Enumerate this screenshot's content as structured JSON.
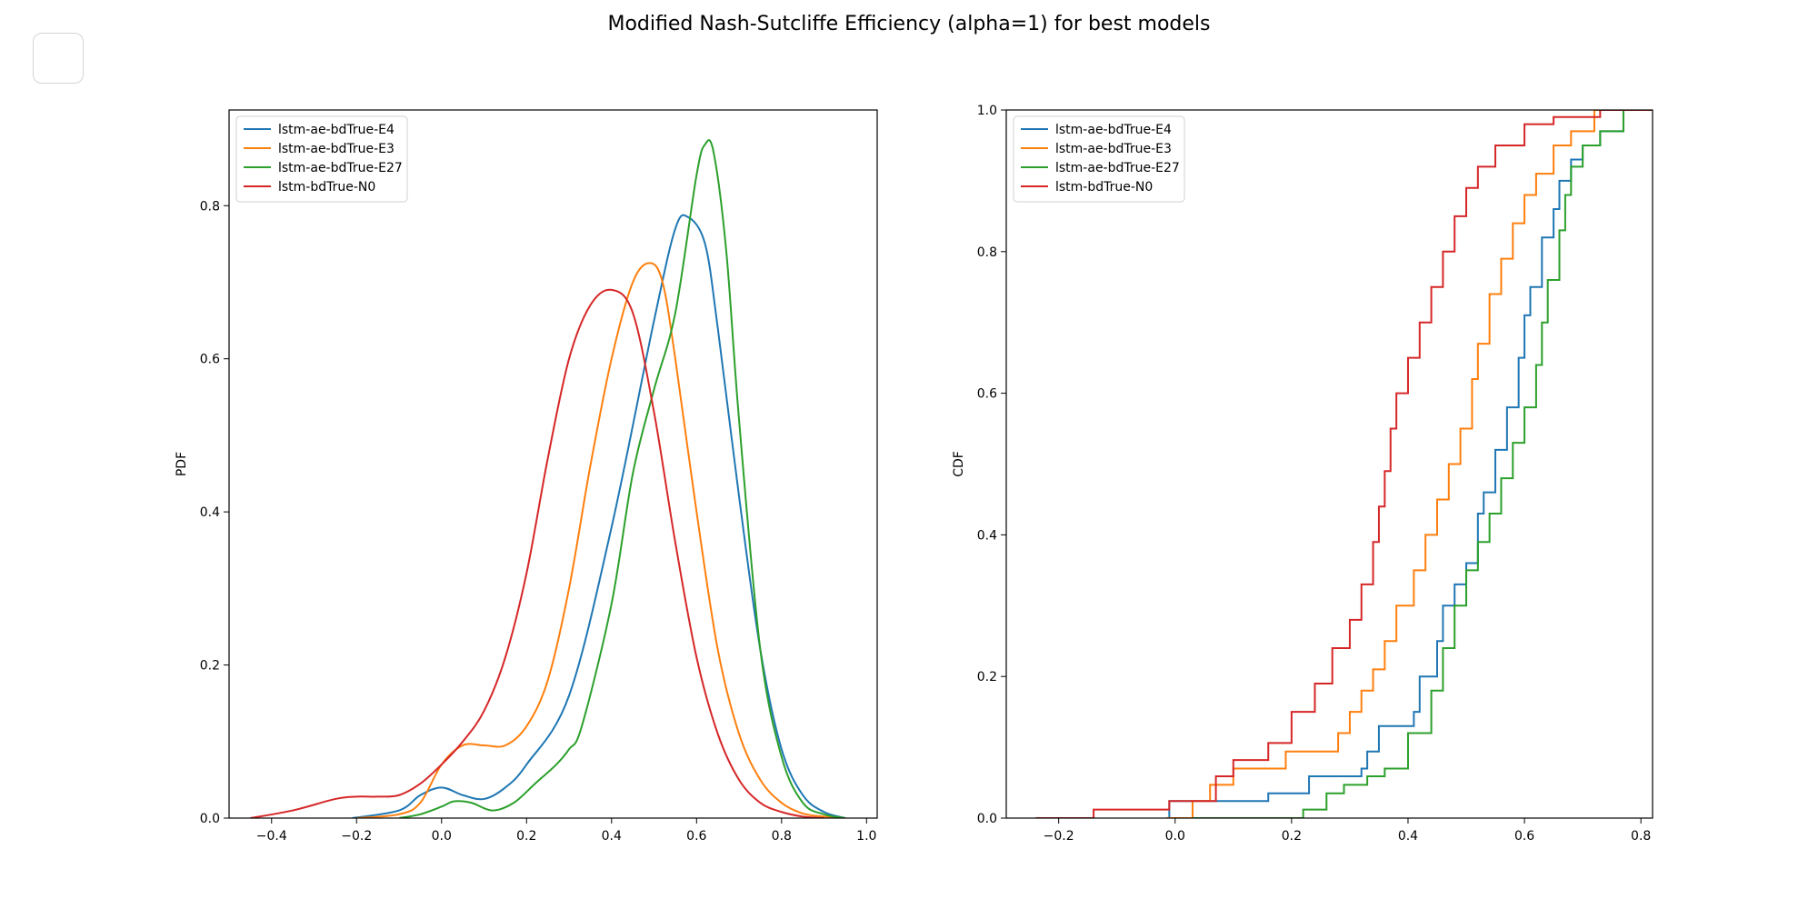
{
  "title": "Modified Nash-Sutcliffe Efficiency (alpha=1) for best models",
  "colors": {
    "E4": "#1f77b4",
    "E3": "#ff7f0e",
    "E27": "#2ca02c",
    "N0": "#d62728"
  },
  "chart_data": [
    {
      "type": "line",
      "ylabel": "PDF",
      "xlabel": "",
      "xlim": [
        -0.5,
        1.025
      ],
      "ylim": [
        0,
        0.925
      ],
      "xticks": [
        -0.4,
        -0.2,
        0.0,
        0.2,
        0.4,
        0.6,
        0.8,
        1.0
      ],
      "xtick_labels": [
        "−0.4",
        "−0.2",
        "0.0",
        "0.2",
        "0.4",
        "0.6",
        "0.8",
        "1.0"
      ],
      "yticks": [
        0.0,
        0.2,
        0.4,
        0.6,
        0.8
      ],
      "ytick_labels": [
        "0.0",
        "0.2",
        "0.4",
        "0.6",
        "0.8"
      ],
      "legend": "top-left",
      "grid": false,
      "series": [
        {
          "name": "lstm-ae-bdTrue-E4",
          "color": "#1f77b4",
          "x": [
            -0.21,
            -0.1,
            -0.05,
            0.0,
            0.05,
            0.1,
            0.15,
            0.2,
            0.3,
            0.4,
            0.5,
            0.55,
            0.58,
            0.62,
            0.65,
            0.7,
            0.75,
            0.8,
            0.85,
            0.9,
            0.95
          ],
          "y": [
            0.0,
            0.01,
            0.03,
            0.04,
            0.03,
            0.025,
            0.04,
            0.07,
            0.16,
            0.38,
            0.65,
            0.77,
            0.785,
            0.75,
            0.64,
            0.42,
            0.22,
            0.09,
            0.03,
            0.008,
            0.0
          ]
        },
        {
          "name": "lstm-ae-bdTrue-E3",
          "color": "#ff7f0e",
          "x": [
            -0.2,
            -0.1,
            -0.05,
            0.0,
            0.05,
            0.1,
            0.15,
            0.2,
            0.25,
            0.3,
            0.35,
            0.4,
            0.45,
            0.49,
            0.52,
            0.55,
            0.6,
            0.65,
            0.7,
            0.75,
            0.8,
            0.85,
            0.9,
            0.95
          ],
          "y": [
            0.0,
            0.005,
            0.02,
            0.07,
            0.095,
            0.095,
            0.095,
            0.12,
            0.18,
            0.3,
            0.46,
            0.6,
            0.7,
            0.725,
            0.7,
            0.6,
            0.4,
            0.22,
            0.11,
            0.05,
            0.02,
            0.006,
            0.002,
            0.0
          ]
        },
        {
          "name": "lstm-ae-bdTrue-E27",
          "color": "#2ca02c",
          "x": [
            -0.1,
            -0.05,
            0.0,
            0.03,
            0.07,
            0.12,
            0.17,
            0.22,
            0.27,
            0.3,
            0.33,
            0.4,
            0.45,
            0.5,
            0.55,
            0.6,
            0.62,
            0.64,
            0.67,
            0.7,
            0.75,
            0.8,
            0.85,
            0.9,
            0.95
          ],
          "y": [
            0.0,
            0.005,
            0.015,
            0.022,
            0.02,
            0.01,
            0.02,
            0.045,
            0.07,
            0.09,
            0.12,
            0.28,
            0.45,
            0.56,
            0.66,
            0.84,
            0.88,
            0.87,
            0.74,
            0.52,
            0.22,
            0.08,
            0.02,
            0.005,
            0.0
          ]
        },
        {
          "name": "lstm-bdTrue-N0",
          "color": "#d62728",
          "x": [
            -0.45,
            -0.35,
            -0.25,
            -0.2,
            -0.15,
            -0.1,
            -0.05,
            0.0,
            0.05,
            0.1,
            0.15,
            0.2,
            0.25,
            0.3,
            0.35,
            0.4,
            0.45,
            0.5,
            0.55,
            0.6,
            0.65,
            0.7,
            0.75,
            0.8,
            0.85,
            0.9
          ],
          "y": [
            0.0,
            0.01,
            0.025,
            0.028,
            0.028,
            0.03,
            0.045,
            0.07,
            0.1,
            0.14,
            0.21,
            0.32,
            0.47,
            0.6,
            0.67,
            0.69,
            0.66,
            0.53,
            0.36,
            0.21,
            0.11,
            0.05,
            0.02,
            0.008,
            0.002,
            0.0
          ]
        }
      ]
    },
    {
      "type": "line",
      "ylabel": "CDF",
      "xlabel": "",
      "xlim": [
        -0.29,
        0.82
      ],
      "ylim": [
        0,
        1.0
      ],
      "xticks": [
        -0.2,
        0.0,
        0.2,
        0.4,
        0.6,
        0.8
      ],
      "xtick_labels": [
        "−0.2",
        "0.0",
        "0.2",
        "0.4",
        "0.6",
        "0.8"
      ],
      "yticks": [
        0.0,
        0.2,
        0.4,
        0.6,
        0.8,
        1.0
      ],
      "ytick_labels": [
        "0.0",
        "0.2",
        "0.4",
        "0.6",
        "0.8",
        "1.0"
      ],
      "legend": "top-left",
      "grid": false,
      "step": true,
      "series": [
        {
          "name": "lstm-ae-bdTrue-E4",
          "color": "#1f77b4",
          "x": [
            -0.015,
            -0.01,
            0.16,
            0.23,
            0.32,
            0.33,
            0.35,
            0.41,
            0.42,
            0.45,
            0.46,
            0.48,
            0.5,
            0.52,
            0.53,
            0.55,
            0.57,
            0.59,
            0.6,
            0.61,
            0.63,
            0.65,
            0.66,
            0.68,
            0.7,
            0.73,
            0.77
          ],
          "y": [
            0.0,
            0.024,
            0.035,
            0.059,
            0.07,
            0.094,
            0.13,
            0.15,
            0.2,
            0.25,
            0.3,
            0.33,
            0.36,
            0.43,
            0.46,
            0.52,
            0.58,
            0.65,
            0.71,
            0.75,
            0.82,
            0.86,
            0.9,
            0.93,
            0.95,
            0.97,
            1.0
          ]
        },
        {
          "name": "lstm-ae-bdTrue-E3",
          "color": "#ff7f0e",
          "x": [
            -0.015,
            0.03,
            0.06,
            0.1,
            0.19,
            0.28,
            0.3,
            0.32,
            0.34,
            0.36,
            0.38,
            0.41,
            0.43,
            0.45,
            0.47,
            0.49,
            0.51,
            0.52,
            0.54,
            0.56,
            0.58,
            0.6,
            0.62,
            0.65,
            0.68,
            0.72
          ],
          "y": [
            0.0,
            0.024,
            0.047,
            0.07,
            0.094,
            0.12,
            0.15,
            0.18,
            0.21,
            0.25,
            0.3,
            0.35,
            0.4,
            0.45,
            0.5,
            0.55,
            0.62,
            0.67,
            0.74,
            0.79,
            0.84,
            0.88,
            0.91,
            0.95,
            0.97,
            1.0
          ]
        },
        {
          "name": "lstm-ae-bdTrue-E27",
          "color": "#2ca02c",
          "x": [
            0.03,
            0.22,
            0.26,
            0.29,
            0.33,
            0.36,
            0.4,
            0.44,
            0.46,
            0.48,
            0.5,
            0.52,
            0.54,
            0.56,
            0.58,
            0.6,
            0.62,
            0.63,
            0.64,
            0.66,
            0.67,
            0.68,
            0.7,
            0.73,
            0.77
          ],
          "y": [
            0.0,
            0.012,
            0.035,
            0.047,
            0.059,
            0.07,
            0.12,
            0.18,
            0.24,
            0.3,
            0.35,
            0.39,
            0.43,
            0.48,
            0.53,
            0.58,
            0.64,
            0.7,
            0.76,
            0.83,
            0.88,
            0.92,
            0.95,
            0.97,
            1.0
          ]
        },
        {
          "name": "lstm-bdTrue-N0",
          "color": "#d62728",
          "x": [
            -0.24,
            -0.14,
            -0.01,
            0.07,
            0.1,
            0.16,
            0.2,
            0.24,
            0.27,
            0.3,
            0.32,
            0.34,
            0.35,
            0.36,
            0.37,
            0.38,
            0.4,
            0.42,
            0.44,
            0.46,
            0.48,
            0.5,
            0.52,
            0.55,
            0.6,
            0.65,
            0.73
          ],
          "y": [
            0.0,
            0.012,
            0.024,
            0.059,
            0.082,
            0.106,
            0.15,
            0.19,
            0.24,
            0.28,
            0.33,
            0.39,
            0.44,
            0.49,
            0.55,
            0.6,
            0.65,
            0.7,
            0.75,
            0.8,
            0.85,
            0.89,
            0.92,
            0.95,
            0.98,
            0.99,
            1.0
          ]
        }
      ]
    }
  ]
}
